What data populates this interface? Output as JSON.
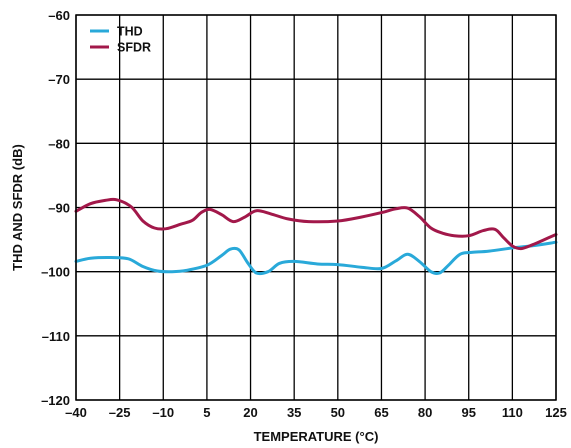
{
  "chart_data": {
    "type": "line",
    "title": "",
    "xlabel": "TEMPERATURE (°C)",
    "ylabel": "THD AND SFDR (dB)",
    "xlim": [
      -40,
      125
    ],
    "ylim": [
      -120,
      -60
    ],
    "xticks": [
      -40,
      -25,
      -10,
      5,
      20,
      35,
      50,
      65,
      80,
      95,
      110,
      125
    ],
    "xtick_labels": [
      "–40",
      "–25",
      "–10",
      "5",
      "20",
      "35",
      "50",
      "65",
      "80",
      "95",
      "110",
      "125"
    ],
    "yticks": [
      -60,
      -70,
      -80,
      -90,
      -100,
      -110,
      -120
    ],
    "ytick_labels": [
      "–60",
      "–70",
      "–80",
      "–90",
      "–100",
      "–110",
      "–120"
    ],
    "grid": true,
    "legend": "top-left",
    "series": [
      {
        "name": "THD",
        "color": "#29a9d9",
        "x": [
          -40,
          -35,
          -28,
          -22,
          -17,
          -12,
          -7,
          -2,
          5,
          10,
          13,
          16,
          19,
          22,
          26,
          30,
          35,
          43,
          50,
          58,
          65,
          70,
          74,
          78,
          82,
          85,
          88,
          92,
          96,
          102,
          110,
          118,
          125
        ],
        "y": [
          -98.4,
          -97.9,
          -97.8,
          -98.0,
          -99.2,
          -99.9,
          -100.0,
          -99.8,
          -99.0,
          -97.5,
          -96.5,
          -96.6,
          -98.6,
          -100.2,
          -100.0,
          -98.7,
          -98.4,
          -98.8,
          -98.9,
          -99.3,
          -99.5,
          -98.3,
          -97.3,
          -98.4,
          -100.0,
          -100.2,
          -99.0,
          -97.3,
          -97.0,
          -96.8,
          -96.3,
          -95.9,
          -95.4
        ]
      },
      {
        "name": "SFDR",
        "color": "#a2184a",
        "x": [
          -40,
          -35,
          -30,
          -26,
          -21,
          -17,
          -13,
          -9,
          -4,
          0,
          3,
          6,
          10,
          14,
          18,
          22,
          27,
          33,
          40,
          50,
          58,
          65,
          70,
          74,
          78,
          82,
          86,
          90,
          95,
          100,
          104,
          107,
          110,
          113,
          117,
          121,
          125
        ],
        "y": [
          -90.6,
          -89.4,
          -88.9,
          -88.8,
          -89.9,
          -92.1,
          -93.2,
          -93.3,
          -92.6,
          -92.0,
          -90.8,
          -90.3,
          -91.1,
          -92.2,
          -91.5,
          -90.5,
          -91.0,
          -91.8,
          -92.2,
          -92.1,
          -91.5,
          -90.8,
          -90.2,
          -90.1,
          -91.4,
          -93.2,
          -94.0,
          -94.4,
          -94.4,
          -93.6,
          -93.4,
          -94.7,
          -96.0,
          -96.4,
          -95.8,
          -95.0,
          -94.2
        ]
      }
    ]
  }
}
